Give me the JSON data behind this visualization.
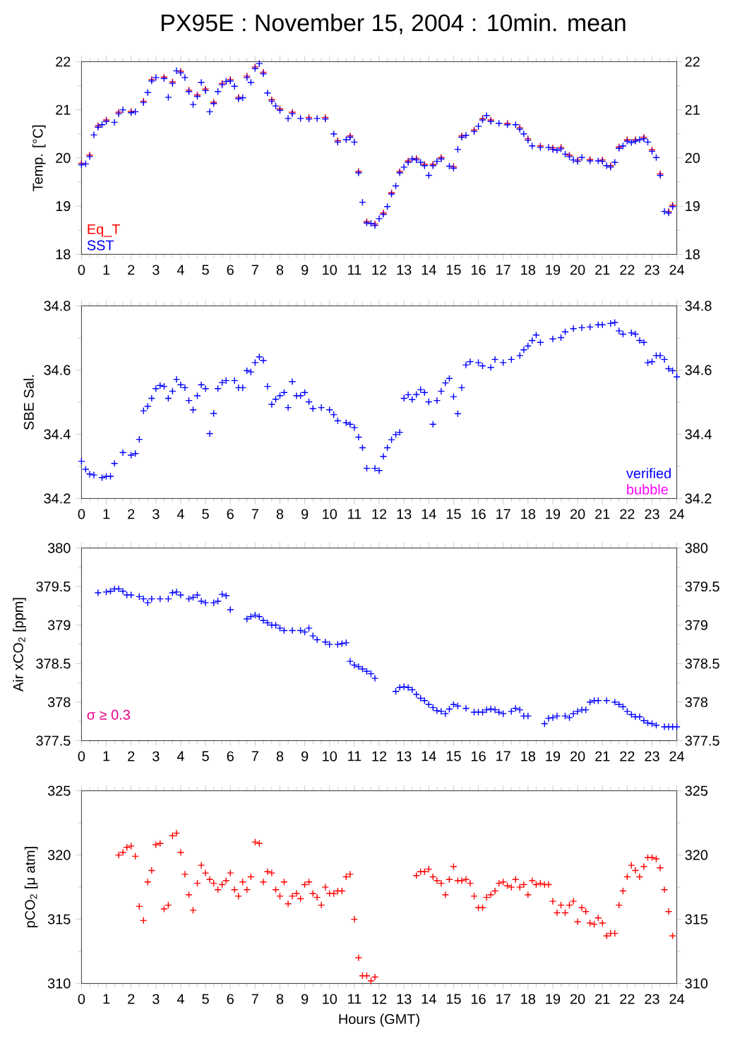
{
  "chart_data": [
    {
      "type": "scatter",
      "title": "PX95E : November 15, 2004 : 10min. mean",
      "ylabel": "Temp. [°C]",
      "marker": "cross",
      "legend": "bottom left",
      "xlim": [
        0,
        24
      ],
      "xticks": [
        0,
        1,
        2,
        3,
        4,
        5,
        6,
        7,
        8,
        9,
        10,
        11,
        12,
        13,
        14,
        15,
        16,
        17,
        18,
        19,
        20,
        21,
        22,
        23,
        24
      ],
      "ylim": [
        18,
        22
      ],
      "yticks": [
        18,
        19,
        20,
        21,
        22
      ],
      "y2lim": [
        18,
        22
      ],
      "y2ticks": [
        18,
        19,
        20,
        21,
        22
      ],
      "series": [
        {
          "name": "Eq_T",
          "color": "#ff0000",
          "x": [
            0.0,
            0.33,
            0.67,
            1.0,
            1.5,
            2.0,
            2.5,
            2.83,
            3.33,
            3.67,
            4.0,
            4.33,
            4.67,
            5.0,
            5.33,
            5.67,
            6.0,
            6.33,
            6.67,
            7.0,
            7.33,
            7.67,
            8.0,
            8.5,
            9.17,
            9.83,
            10.33,
            10.83,
            11.17,
            11.5,
            11.83,
            12.17,
            12.5,
            12.83,
            13.17,
            13.5,
            13.83,
            14.17,
            14.5,
            15.0,
            15.33,
            15.83,
            16.17,
            16.5,
            17.17,
            17.67,
            18.0,
            18.5,
            19.0,
            19.33,
            19.67,
            20.0,
            20.5,
            21.0,
            21.33,
            21.67,
            22.0,
            22.33,
            22.67,
            23.0,
            23.33,
            23.67,
            23.83
          ],
          "values": [
            19.89,
            20.06,
            20.67,
            20.79,
            20.95,
            20.97,
            21.18,
            21.63,
            21.68,
            21.58,
            21.8,
            21.41,
            21.31,
            21.43,
            21.16,
            21.55,
            21.63,
            21.26,
            21.7,
            21.89,
            21.78,
            21.21,
            21.02,
            20.95,
            20.84,
            20.84,
            20.36,
            20.46,
            19.72,
            18.68,
            18.63,
            18.86,
            19.28,
            19.72,
            19.94,
            19.99,
            19.87,
            19.87,
            20.01,
            19.82,
            20.46,
            20.58,
            20.82,
            20.79,
            20.72,
            20.63,
            20.4,
            20.25,
            20.21,
            20.22,
            20.06,
            19.96,
            19.97,
            19.96,
            19.84,
            20.23,
            20.38,
            20.38,
            20.43,
            20.17,
            19.67,
            18.89,
            19.02
          ]
        },
        {
          "name": "SST",
          "color": "#0000ff",
          "x": [
            0.0,
            0.17,
            0.33,
            0.5,
            0.67,
            0.83,
            1.0,
            1.33,
            1.5,
            1.67,
            2.0,
            2.17,
            2.5,
            2.67,
            2.83,
            3.0,
            3.33,
            3.5,
            3.67,
            3.83,
            4.0,
            4.17,
            4.33,
            4.5,
            4.67,
            4.83,
            5.0,
            5.17,
            5.33,
            5.5,
            5.67,
            5.83,
            6.0,
            6.17,
            6.33,
            6.5,
            6.67,
            6.83,
            7.0,
            7.17,
            7.33,
            7.5,
            7.67,
            7.83,
            8.0,
            8.33,
            8.5,
            8.83,
            9.17,
            9.5,
            9.83,
            10.17,
            10.33,
            10.67,
            10.83,
            11.0,
            11.17,
            11.33,
            11.5,
            11.67,
            11.83,
            12.0,
            12.17,
            12.33,
            12.5,
            12.67,
            12.83,
            13.0,
            13.17,
            13.33,
            13.5,
            13.67,
            13.83,
            14.0,
            14.17,
            14.33,
            14.5,
            14.83,
            15.0,
            15.17,
            15.33,
            15.5,
            15.83,
            16.0,
            16.17,
            16.33,
            16.5,
            16.83,
            17.17,
            17.5,
            17.67,
            17.83,
            18.0,
            18.17,
            18.5,
            18.83,
            19.0,
            19.17,
            19.33,
            19.5,
            19.67,
            19.83,
            20.0,
            20.17,
            20.5,
            20.83,
            21.0,
            21.17,
            21.33,
            21.5,
            21.67,
            21.83,
            22.0,
            22.17,
            22.33,
            22.5,
            22.67,
            22.83,
            23.0,
            23.17,
            23.33,
            23.5,
            23.67,
            23.83
          ],
          "values": [
            19.86,
            19.88,
            20.03,
            20.48,
            20.64,
            20.69,
            20.76,
            20.74,
            20.92,
            21.0,
            20.94,
            20.96,
            21.15,
            21.36,
            21.6,
            21.67,
            21.65,
            21.26,
            21.55,
            21.81,
            21.77,
            21.67,
            21.38,
            21.11,
            21.28,
            21.57,
            21.4,
            20.96,
            21.13,
            21.38,
            21.52,
            21.59,
            21.6,
            21.49,
            21.23,
            21.25,
            21.67,
            21.57,
            21.86,
            21.96,
            21.75,
            21.35,
            21.18,
            21.08,
            20.99,
            20.82,
            20.92,
            20.82,
            20.81,
            20.82,
            20.81,
            20.5,
            20.33,
            20.38,
            20.43,
            20.33,
            19.69,
            19.08,
            18.65,
            18.64,
            18.6,
            18.74,
            18.83,
            18.99,
            19.25,
            19.42,
            19.69,
            19.81,
            19.91,
            19.98,
            19.96,
            19.91,
            19.84,
            19.64,
            19.84,
            19.93,
            19.98,
            19.83,
            19.79,
            20.18,
            20.43,
            20.47,
            20.55,
            20.66,
            20.79,
            20.88,
            20.76,
            20.72,
            20.69,
            20.69,
            20.6,
            20.5,
            20.37,
            20.25,
            20.22,
            20.22,
            20.18,
            20.16,
            20.19,
            20.08,
            20.03,
            19.96,
            19.93,
            20.01,
            19.94,
            19.94,
            19.93,
            19.84,
            19.81,
            19.91,
            20.2,
            20.25,
            20.35,
            20.32,
            20.35,
            20.38,
            20.4,
            20.33,
            20.14,
            20.01,
            19.64,
            18.89,
            18.86,
            18.99
          ]
        }
      ]
    },
    {
      "type": "scatter",
      "ylabel": "SBE Sal.",
      "marker": "cross",
      "legend": "bottom right",
      "xlim": [
        0,
        24
      ],
      "xticks": [
        0,
        1,
        2,
        3,
        4,
        5,
        6,
        7,
        8,
        9,
        10,
        11,
        12,
        13,
        14,
        15,
        16,
        17,
        18,
        19,
        20,
        21,
        22,
        23,
        24
      ],
      "ylim": [
        34.2,
        34.8
      ],
      "yticks": [
        34.2,
        34.4,
        34.6,
        34.8
      ],
      "y2lim": [
        34.2,
        34.8
      ],
      "y2ticks": [
        34.2,
        34.4,
        34.6,
        34.8
      ],
      "series": [
        {
          "name": "verified",
          "color": "#0000ff",
          "x": [
            0.0,
            0.17,
            0.33,
            0.5,
            0.83,
            1.0,
            1.17,
            1.33,
            1.67,
            2.0,
            2.17,
            2.33,
            2.5,
            2.67,
            2.83,
            3.0,
            3.17,
            3.33,
            3.5,
            3.67,
            3.83,
            4.0,
            4.17,
            4.33,
            4.5,
            4.67,
            4.83,
            5.0,
            5.17,
            5.33,
            5.5,
            5.67,
            5.83,
            6.17,
            6.33,
            6.5,
            6.67,
            6.83,
            7.0,
            7.17,
            7.33,
            7.5,
            7.67,
            7.83,
            8.0,
            8.17,
            8.33,
            8.5,
            8.67,
            8.83,
            9.0,
            9.17,
            9.33,
            9.67,
            10.0,
            10.17,
            10.33,
            10.67,
            10.83,
            11.0,
            11.17,
            11.33,
            11.5,
            11.83,
            12.0,
            12.17,
            12.33,
            12.5,
            12.67,
            12.83,
            13.0,
            13.17,
            13.33,
            13.5,
            13.67,
            13.83,
            14.0,
            14.17,
            14.33,
            14.5,
            14.67,
            14.83,
            15.0,
            15.17,
            15.33,
            15.5,
            15.67,
            16.0,
            16.17,
            16.5,
            16.67,
            17.0,
            17.33,
            17.67,
            17.83,
            18.0,
            18.17,
            18.33,
            18.5,
            19.0,
            19.33,
            19.5,
            19.83,
            20.17,
            20.5,
            20.83,
            21.0,
            21.33,
            21.5,
            21.67,
            21.83,
            22.17,
            22.33,
            22.5,
            22.67,
            22.83,
            23.0,
            23.17,
            23.33,
            23.5,
            23.67,
            23.83,
            24.0
          ],
          "values": [
            34.316,
            34.291,
            34.276,
            34.273,
            34.265,
            34.269,
            34.269,
            34.309,
            34.343,
            34.335,
            34.34,
            34.384,
            34.473,
            34.487,
            34.512,
            34.542,
            34.552,
            34.549,
            34.512,
            34.534,
            34.571,
            34.554,
            34.545,
            34.505,
            34.476,
            34.52,
            34.554,
            34.542,
            34.402,
            34.465,
            34.542,
            34.561,
            34.567,
            34.567,
            34.545,
            34.545,
            34.598,
            34.594,
            34.623,
            34.641,
            34.63,
            34.549,
            34.493,
            34.509,
            34.52,
            34.53,
            34.483,
            34.564,
            34.52,
            34.52,
            34.53,
            34.501,
            34.48,
            34.483,
            34.476,
            34.461,
            34.442,
            34.436,
            34.431,
            34.421,
            34.391,
            34.358,
            34.294,
            34.294,
            34.287,
            34.331,
            34.358,
            34.383,
            34.399,
            34.406,
            34.512,
            34.523,
            34.508,
            34.524,
            34.539,
            34.53,
            34.501,
            34.431,
            34.505,
            34.534,
            34.56,
            34.574,
            34.517,
            34.464,
            34.545,
            34.616,
            34.626,
            34.623,
            34.613,
            34.608,
            34.633,
            34.623,
            34.633,
            34.645,
            34.663,
            34.675,
            34.692,
            34.709,
            34.686,
            34.697,
            34.701,
            34.719,
            34.729,
            34.732,
            34.734,
            34.741,
            34.741,
            34.745,
            34.748,
            34.722,
            34.712,
            34.716,
            34.712,
            34.692,
            34.686,
            34.623,
            34.626,
            34.645,
            34.645,
            34.633,
            34.604,
            34.598,
            34.579
          ]
        },
        {
          "name": "bubble",
          "color": "#ff00ff"
        }
      ]
    },
    {
      "type": "scatter",
      "ylabel": "Air xCO$_{2}$ [ppm]",
      "marker": "cross",
      "annotations": [
        "σ ≥ 0.3"
      ],
      "xlim": [
        0,
        24
      ],
      "xticks": [
        0,
        1,
        2,
        3,
        4,
        5,
        6,
        7,
        8,
        9,
        10,
        11,
        12,
        13,
        14,
        15,
        16,
        17,
        18,
        19,
        20,
        21,
        22,
        23,
        24
      ],
      "ylim": [
        377.5,
        380
      ],
      "yticks": [
        377.5,
        378,
        378.5,
        379,
        379.5,
        380
      ],
      "y2lim": [
        377.5,
        380
      ],
      "y2ticks": [
        377.5,
        378,
        378.5,
        379,
        379.5,
        380
      ],
      "series": [
        {
          "color": "#0000ff",
          "x": [
            0.67,
            1.0,
            1.17,
            1.33,
            1.5,
            1.67,
            1.83,
            2.0,
            2.33,
            2.5,
            2.67,
            2.83,
            3.17,
            3.5,
            3.67,
            3.83,
            4.0,
            4.33,
            4.5,
            4.67,
            4.83,
            5.0,
            5.33,
            5.5,
            5.67,
            5.83,
            6.0,
            6.67,
            6.83,
            7.0,
            7.17,
            7.33,
            7.5,
            7.67,
            7.83,
            8.0,
            8.17,
            8.5,
            8.83,
            9.0,
            9.17,
            9.33,
            9.5,
            9.83,
            10.0,
            10.33,
            10.5,
            10.67,
            10.83,
            11.0,
            11.17,
            11.33,
            11.5,
            11.67,
            11.83,
            12.67,
            12.83,
            13.0,
            13.17,
            13.33,
            13.5,
            13.67,
            13.83,
            14.0,
            14.17,
            14.33,
            14.5,
            14.67,
            14.83,
            15.0,
            15.17,
            15.5,
            15.83,
            16.0,
            16.17,
            16.33,
            16.5,
            16.67,
            16.83,
            17.0,
            17.33,
            17.5,
            17.67,
            17.83,
            18.0,
            18.67,
            18.83,
            19.0,
            19.17,
            19.5,
            19.67,
            19.83,
            20.0,
            20.17,
            20.33,
            20.5,
            20.67,
            20.83,
            21.17,
            21.5,
            21.67,
            21.83,
            22.0,
            22.17,
            22.33,
            22.5,
            22.67,
            22.83,
            23.0,
            23.17,
            23.5,
            23.67,
            23.83,
            24.0
          ],
          "values": [
            379.42,
            379.43,
            379.44,
            379.47,
            379.47,
            379.44,
            379.39,
            379.39,
            379.37,
            379.34,
            379.29,
            379.34,
            379.34,
            379.34,
            379.42,
            379.43,
            379.39,
            379.34,
            379.36,
            379.39,
            379.31,
            379.29,
            379.29,
            379.31,
            379.4,
            379.38,
            379.2,
            379.08,
            379.11,
            379.13,
            379.11,
            379.06,
            379.03,
            379.0,
            379.0,
            378.96,
            378.93,
            378.93,
            378.93,
            378.91,
            378.96,
            378.86,
            378.81,
            378.78,
            378.75,
            378.75,
            378.76,
            378.77,
            378.53,
            378.48,
            378.46,
            378.43,
            378.4,
            378.37,
            378.31,
            378.14,
            378.19,
            378.2,
            378.19,
            378.16,
            378.1,
            378.05,
            378.02,
            377.97,
            377.93,
            377.89,
            377.88,
            377.85,
            377.91,
            377.97,
            377.95,
            377.92,
            377.87,
            377.87,
            377.87,
            377.9,
            377.91,
            377.9,
            377.87,
            377.85,
            377.88,
            377.92,
            377.9,
            377.82,
            377.82,
            377.72,
            377.79,
            377.8,
            377.82,
            377.82,
            377.8,
            377.85,
            377.88,
            377.9,
            377.9,
            378.0,
            378.02,
            378.02,
            378.02,
            378.0,
            377.97,
            377.94,
            377.88,
            377.84,
            377.81,
            377.81,
            377.76,
            377.73,
            377.72,
            377.7,
            377.68,
            377.68,
            377.68,
            377.68
          ]
        }
      ]
    },
    {
      "type": "scatter",
      "ylabel": "pCO$_{2}$ [μ atm]",
      "xlabel": "Hours (GMT)",
      "marker": "cross",
      "xlim": [
        0,
        24
      ],
      "xticks": [
        0,
        1,
        2,
        3,
        4,
        5,
        6,
        7,
        8,
        9,
        10,
        11,
        12,
        13,
        14,
        15,
        16,
        17,
        18,
        19,
        20,
        21,
        22,
        23,
        24
      ],
      "ylim": [
        310,
        325
      ],
      "yticks": [
        310,
        315,
        320,
        325
      ],
      "y2lim": [
        310,
        325
      ],
      "y2ticks": [
        310,
        315,
        320,
        325
      ],
      "series": [
        {
          "color": "#ff0000",
          "x": [
            1.5,
            1.67,
            1.83,
            2.0,
            2.17,
            2.33,
            2.5,
            2.67,
            2.83,
            3.0,
            3.17,
            3.33,
            3.5,
            3.67,
            3.83,
            4.0,
            4.17,
            4.33,
            4.5,
            4.67,
            4.83,
            5.0,
            5.17,
            5.33,
            5.5,
            5.67,
            5.83,
            6.0,
            6.17,
            6.33,
            6.5,
            6.67,
            6.83,
            7.0,
            7.17,
            7.33,
            7.5,
            7.67,
            7.83,
            8.0,
            8.17,
            8.33,
            8.5,
            8.67,
            8.83,
            9.0,
            9.17,
            9.33,
            9.5,
            9.67,
            9.83,
            10.0,
            10.17,
            10.33,
            10.5,
            10.67,
            10.83,
            11.0,
            11.17,
            11.33,
            11.5,
            11.67,
            11.83,
            13.5,
            13.67,
            13.83,
            14.0,
            14.17,
            14.33,
            14.5,
            14.67,
            14.83,
            15.0,
            15.17,
            15.33,
            15.5,
            15.67,
            15.83,
            16.0,
            16.17,
            16.33,
            16.5,
            16.67,
            16.83,
            17.0,
            17.17,
            17.33,
            17.5,
            17.67,
            17.83,
            18.0,
            18.17,
            18.33,
            18.5,
            18.67,
            18.83,
            19.0,
            19.17,
            19.33,
            19.5,
            19.67,
            19.83,
            20.0,
            20.17,
            20.33,
            20.5,
            20.67,
            20.83,
            21.0,
            21.17,
            21.33,
            21.5,
            21.67,
            21.83,
            22.0,
            22.17,
            22.33,
            22.5,
            22.67,
            22.83,
            23.0,
            23.17,
            23.33,
            23.5,
            23.67,
            23.83
          ],
          "values": [
            320.0,
            320.2,
            320.6,
            320.7,
            319.9,
            316.0,
            314.9,
            317.9,
            318.8,
            320.8,
            320.9,
            315.8,
            316.1,
            321.5,
            321.7,
            320.2,
            318.5,
            316.9,
            315.7,
            317.8,
            319.2,
            318.6,
            318.1,
            317.8,
            317.3,
            317.7,
            318.0,
            318.6,
            317.3,
            316.8,
            317.9,
            317.3,
            318.3,
            321.0,
            320.9,
            317.9,
            318.7,
            318.6,
            317.3,
            316.8,
            317.9,
            316.2,
            316.8,
            317.0,
            316.6,
            317.7,
            317.9,
            317.0,
            316.7,
            316.1,
            317.5,
            317.0,
            317.0,
            317.2,
            317.2,
            318.3,
            318.5,
            315.0,
            312.0,
            310.6,
            310.6,
            310.2,
            310.5,
            318.4,
            318.7,
            318.7,
            318.9,
            318.3,
            318.0,
            317.8,
            316.9,
            318.1,
            319.1,
            318.0,
            318.0,
            318.1,
            317.8,
            316.8,
            315.9,
            315.9,
            316.7,
            316.9,
            317.2,
            317.8,
            317.9,
            317.6,
            317.5,
            318.1,
            317.5,
            317.7,
            316.9,
            318.0,
            317.7,
            317.8,
            317.7,
            317.7,
            316.4,
            315.5,
            316.1,
            315.5,
            316.1,
            316.4,
            314.8,
            315.9,
            315.6,
            314.7,
            314.6,
            315.1,
            314.7,
            313.7,
            313.9,
            313.9,
            316.1,
            317.2,
            318.3,
            319.2,
            318.8,
            318.3,
            319.1,
            319.8,
            319.8,
            319.7,
            319.0,
            317.3,
            315.6,
            313.7
          ]
        }
      ]
    }
  ]
}
